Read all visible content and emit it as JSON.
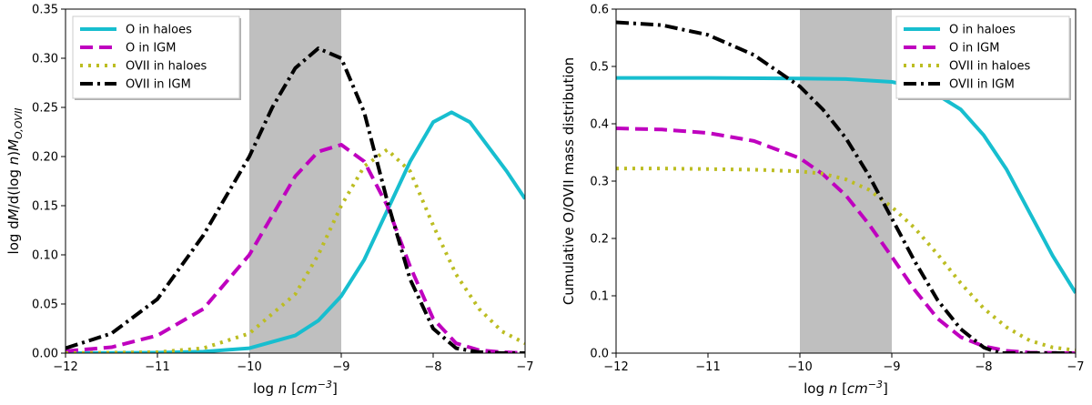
{
  "chart_data": [
    {
      "type": "line",
      "xlabel": "log n [cm^-3]",
      "ylabel": "log dM/d(log n)M_O,OVII",
      "xlim": [
        -12,
        -7
      ],
      "ylim": [
        0,
        0.35
      ],
      "xticks": [
        "-12",
        "-11",
        "-10",
        "-9",
        "-8",
        "-7"
      ],
      "yticks": [
        "0.00",
        "0.05",
        "0.10",
        "0.15",
        "0.20",
        "0.25",
        "0.30",
        "0.35"
      ],
      "shaded_region": [
        -10,
        -9
      ],
      "legend_position": "top-left",
      "series": [
        {
          "name": "O in haloes",
          "color": "#17becf",
          "style": "solid",
          "x": [
            -12,
            -11,
            -10.5,
            -10,
            -9.5,
            -9.25,
            -9,
            -8.75,
            -8.5,
            -8.25,
            -8,
            -7.8,
            -7.6,
            -7.4,
            -7.2,
            -7
          ],
          "y": [
            0.0,
            0.0005,
            0.0015,
            0.005,
            0.018,
            0.033,
            0.058,
            0.095,
            0.145,
            0.195,
            0.235,
            0.245,
            0.235,
            0.21,
            0.185,
            0.157
          ]
        },
        {
          "name": "O in IGM",
          "color": "#bf00bf",
          "style": "dashed",
          "x": [
            -12,
            -11.5,
            -11,
            -10.5,
            -10,
            -9.75,
            -9.5,
            -9.25,
            -9,
            -8.75,
            -8.5,
            -8.25,
            -8,
            -7.75,
            -7.5,
            -7.25,
            -7
          ],
          "y": [
            0.002,
            0.006,
            0.018,
            0.045,
            0.1,
            0.14,
            0.18,
            0.205,
            0.212,
            0.195,
            0.15,
            0.088,
            0.035,
            0.01,
            0.003,
            0.001,
            0.0
          ]
        },
        {
          "name": "OVII in haloes",
          "color": "#bcbd22",
          "style": "dotted",
          "x": [
            -12,
            -11,
            -10.5,
            -10,
            -9.5,
            -9.25,
            -9,
            -8.75,
            -8.5,
            -8.25,
            -8,
            -7.75,
            -7.5,
            -7.25,
            -7
          ],
          "y": [
            0.0,
            0.001,
            0.005,
            0.02,
            0.06,
            0.1,
            0.15,
            0.19,
            0.207,
            0.185,
            0.13,
            0.08,
            0.045,
            0.022,
            0.01
          ]
        },
        {
          "name": "OVII in IGM",
          "color": "#000000",
          "style": "dashdot",
          "x": [
            -12,
            -11.5,
            -11,
            -10.5,
            -10,
            -9.75,
            -9.5,
            -9.25,
            -9,
            -8.75,
            -8.5,
            -8.25,
            -8,
            -7.75,
            -7.5,
            -7.25,
            -7
          ],
          "y": [
            0.005,
            0.02,
            0.055,
            0.12,
            0.2,
            0.25,
            0.29,
            0.31,
            0.3,
            0.245,
            0.155,
            0.075,
            0.025,
            0.005,
            0.001,
            0.0,
            0.0
          ]
        }
      ]
    },
    {
      "type": "line",
      "xlabel": "log n [cm^-3]",
      "ylabel": "Cumulative O/OVII mass distribution",
      "xlim": [
        -12,
        -7
      ],
      "ylim": [
        0,
        0.6
      ],
      "xticks": [
        "-12",
        "-11",
        "-10",
        "-9",
        "-8",
        "-7"
      ],
      "yticks": [
        "0.0",
        "0.1",
        "0.2",
        "0.3",
        "0.4",
        "0.5",
        "0.6"
      ],
      "shaded_region": [
        -10,
        -9
      ],
      "legend_position": "top-right",
      "series": [
        {
          "name": "O in haloes",
          "color": "#17becf",
          "style": "solid",
          "x": [
            -12,
            -11,
            -10,
            -9.5,
            -9,
            -8.75,
            -8.5,
            -8.25,
            -8,
            -7.75,
            -7.5,
            -7.25,
            -7
          ],
          "y": [
            0.48,
            0.48,
            0.479,
            0.478,
            0.473,
            0.465,
            0.45,
            0.425,
            0.38,
            0.32,
            0.245,
            0.17,
            0.105
          ]
        },
        {
          "name": "O in IGM",
          "color": "#bf00bf",
          "style": "dashed",
          "x": [
            -12,
            -11.5,
            -11,
            -10.5,
            -10,
            -9.75,
            -9.5,
            -9.25,
            -9,
            -8.75,
            -8.5,
            -8.25,
            -8,
            -7.75,
            -7.5,
            -7
          ],
          "y": [
            0.392,
            0.39,
            0.384,
            0.37,
            0.34,
            0.312,
            0.275,
            0.225,
            0.168,
            0.11,
            0.06,
            0.028,
            0.012,
            0.004,
            0.001,
            0.0
          ]
        },
        {
          "name": "OVII in haloes",
          "color": "#bcbd22",
          "style": "dotted",
          "x": [
            -12,
            -11.5,
            -11,
            -10.5,
            -10,
            -9.75,
            -9.5,
            -9.25,
            -9,
            -8.75,
            -8.5,
            -8.25,
            -8,
            -7.75,
            -7.5,
            -7.25,
            -7
          ],
          "y": [
            0.322,
            0.322,
            0.321,
            0.32,
            0.317,
            0.313,
            0.303,
            0.285,
            0.255,
            0.218,
            0.172,
            0.122,
            0.078,
            0.045,
            0.022,
            0.01,
            0.005
          ]
        },
        {
          "name": "OVII in IGM",
          "color": "#000000",
          "style": "dashdot",
          "x": [
            -12,
            -11.5,
            -11,
            -10.5,
            -10,
            -9.75,
            -9.5,
            -9.25,
            -9,
            -8.75,
            -8.5,
            -8.25,
            -8,
            -7.9,
            -7.8,
            -7.5,
            -7
          ],
          "y": [
            0.577,
            0.572,
            0.555,
            0.52,
            0.465,
            0.425,
            0.375,
            0.31,
            0.235,
            0.16,
            0.092,
            0.042,
            0.01,
            0.004,
            0.0,
            0.0,
            0.0
          ]
        }
      ]
    }
  ]
}
